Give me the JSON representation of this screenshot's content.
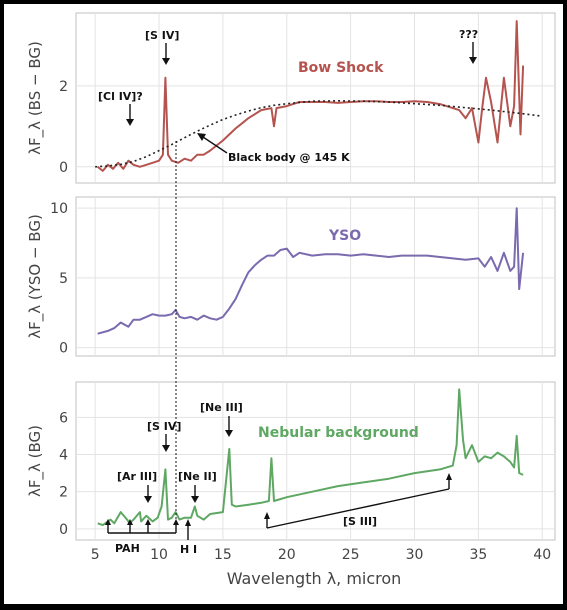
{
  "chart_data": [
    {
      "type": "line",
      "ylabel": "λF_λ (BS − BG)",
      "ylim": [
        -0.4,
        3.8
      ],
      "yticks": [
        0,
        2
      ],
      "xlim": [
        3.5,
        41
      ],
      "grid": true,
      "series": [
        {
          "name": "Bow Shock",
          "color": "#b5534f",
          "x": [
            5.2,
            5.6,
            6.0,
            6.4,
            6.8,
            7.2,
            7.6,
            8.0,
            8.5,
            9.0,
            9.5,
            10.0,
            10.3,
            10.5,
            10.7,
            11.0,
            11.5,
            12.0,
            12.5,
            13.0,
            13.5,
            14.0,
            15.0,
            16.0,
            17.0,
            18.0,
            18.8,
            19.0,
            19.2,
            20.0,
            21.0,
            22.0,
            23.0,
            24.0,
            25.0,
            26.0,
            27.0,
            28.0,
            29.0,
            30.0,
            31.0,
            32.0,
            33.0,
            33.5,
            34.0,
            34.5,
            35.0,
            35.3,
            35.6,
            36.0,
            36.5,
            37.0,
            37.5,
            37.8,
            38.0,
            38.3,
            38.5
          ],
          "values": [
            0.0,
            -0.1,
            0.05,
            -0.05,
            0.1,
            -0.05,
            0.15,
            0.05,
            0.0,
            0.05,
            0.1,
            0.15,
            0.3,
            2.2,
            0.3,
            0.15,
            0.1,
            0.2,
            0.15,
            0.3,
            0.3,
            0.4,
            0.65,
            0.95,
            1.2,
            1.4,
            1.45,
            1.0,
            1.45,
            1.5,
            1.6,
            1.6,
            1.6,
            1.58,
            1.6,
            1.62,
            1.62,
            1.6,
            1.6,
            1.62,
            1.6,
            1.55,
            1.45,
            1.4,
            1.2,
            1.45,
            0.6,
            1.45,
            2.2,
            1.6,
            0.6,
            2.2,
            1.0,
            1.5,
            3.6,
            0.8,
            2.5
          ]
        },
        {
          "name": "Black body @ 145 K",
          "color": "#222222",
          "dotted": true,
          "x": [
            5.0,
            6.0,
            7.0,
            8.0,
            9.0,
            10.0,
            11.0,
            12.0,
            13.0,
            14.0,
            15.0,
            16.0,
            17.0,
            18.0,
            19.0,
            20.0,
            22.0,
            24.0,
            26.0,
            28.0,
            30.0,
            32.0,
            34.0,
            36.0,
            38.0,
            40.0
          ],
          "values": [
            0.0,
            0.02,
            0.06,
            0.13,
            0.25,
            0.4,
            0.55,
            0.72,
            0.88,
            1.03,
            1.17,
            1.28,
            1.38,
            1.46,
            1.52,
            1.56,
            1.62,
            1.63,
            1.62,
            1.6,
            1.56,
            1.52,
            1.46,
            1.4,
            1.33,
            1.25
          ]
        }
      ],
      "annotations": [
        "[S IV]",
        "[Cl IV]?",
        "???",
        "Black body @ 145 K"
      ]
    },
    {
      "type": "line",
      "ylabel": "λF_λ (YSO − BG)",
      "ylim": [
        -0.6,
        10.8
      ],
      "yticks": [
        0,
        5,
        10
      ],
      "xlim": [
        3.5,
        41
      ],
      "grid": true,
      "series": [
        {
          "name": "YSO",
          "color": "#7a6aae",
          "x": [
            5.2,
            6.0,
            6.5,
            7.0,
            7.6,
            8.0,
            8.5,
            9.0,
            9.5,
            10.0,
            10.5,
            11.0,
            11.3,
            11.6,
            12.0,
            12.5,
            13.0,
            13.5,
            14.0,
            14.5,
            15.0,
            15.5,
            16.0,
            16.5,
            17.0,
            17.5,
            18.0,
            18.5,
            19.0,
            19.5,
            20.0,
            20.5,
            21.0,
            22.0,
            23.0,
            24.0,
            25.0,
            26.0,
            27.0,
            28.0,
            29.0,
            30.0,
            31.0,
            32.0,
            33.0,
            34.0,
            35.0,
            35.5,
            36.0,
            36.5,
            37.0,
            37.5,
            37.8,
            38.0,
            38.2,
            38.5
          ],
          "values": [
            1.0,
            1.2,
            1.4,
            1.8,
            1.5,
            2.0,
            2.0,
            2.2,
            2.4,
            2.3,
            2.3,
            2.4,
            2.7,
            2.2,
            2.1,
            2.2,
            2.0,
            2.3,
            2.1,
            2.0,
            2.2,
            2.8,
            3.5,
            4.5,
            5.4,
            5.9,
            6.3,
            6.6,
            6.6,
            7.0,
            7.1,
            6.5,
            6.8,
            6.6,
            6.7,
            6.7,
            6.6,
            6.7,
            6.6,
            6.5,
            6.6,
            6.6,
            6.6,
            6.5,
            6.4,
            6.3,
            6.4,
            5.8,
            6.5,
            5.5,
            6.8,
            5.5,
            5.8,
            10.0,
            4.2,
            6.8
          ]
        }
      ]
    },
    {
      "type": "line",
      "ylabel": "λF_λ (BG)",
      "xlabel": "Wavelength λ, micron",
      "ylim": [
        -0.6,
        7.9
      ],
      "yticks": [
        0,
        2,
        4,
        6
      ],
      "xlim": [
        3.5,
        41
      ],
      "xticks": [
        5,
        10,
        15,
        20,
        25,
        30,
        35,
        40
      ],
      "grid": true,
      "series": [
        {
          "name": "Nebular background",
          "color": "#5ea863",
          "x": [
            5.2,
            5.6,
            6.0,
            6.2,
            6.5,
            7.0,
            7.5,
            7.7,
            8.0,
            8.5,
            8.6,
            9.0,
            9.5,
            9.9,
            10.2,
            10.5,
            10.7,
            11.0,
            11.3,
            11.6,
            12.0,
            12.5,
            12.8,
            13.0,
            13.5,
            14.0,
            15.0,
            15.5,
            15.7,
            16.0,
            17.0,
            18.0,
            18.6,
            18.8,
            19.0,
            20.0,
            22.0,
            24.0,
            26.0,
            28.0,
            30.0,
            32.0,
            33.0,
            33.3,
            33.5,
            33.8,
            34.0,
            34.5,
            35.0,
            35.5,
            36.0,
            36.5,
            37.0,
            37.5,
            37.8,
            38.0,
            38.2,
            38.5
          ],
          "values": [
            0.3,
            0.2,
            0.4,
            0.5,
            0.3,
            0.9,
            0.5,
            0.3,
            0.5,
            0.9,
            0.4,
            0.7,
            0.4,
            0.6,
            1.2,
            3.2,
            0.5,
            0.6,
            0.9,
            0.5,
            0.6,
            0.6,
            1.2,
            0.7,
            0.5,
            0.8,
            0.9,
            4.3,
            1.3,
            1.2,
            1.3,
            1.4,
            1.5,
            3.8,
            1.5,
            1.7,
            2.0,
            2.3,
            2.5,
            2.7,
            3.0,
            3.2,
            3.4,
            4.5,
            7.5,
            4.8,
            3.8,
            4.5,
            3.6,
            3.9,
            3.8,
            4.1,
            3.9,
            3.6,
            3.3,
            5.0,
            3.0,
            2.9
          ]
        }
      ],
      "annotations": [
        "[S IV]",
        "[Ne III]",
        "[Ar III]",
        "[Ne II]",
        "PAH",
        "H I",
        "[S III]"
      ]
    }
  ],
  "labels": {
    "bow_shock": "Bow Shock",
    "yso": "YSO",
    "nebular": "Nebular background",
    "p1_s4": "[S IV]",
    "p1_cl4": "[Cl IV]?",
    "p1_qqq": "???",
    "blackbody": "Black body @ 145 K",
    "p3_s4": "[S IV]",
    "p3_ne3": "[Ne III]",
    "p3_ar3": "[Ar III]",
    "p3_ne2": "[Ne II]",
    "p3_pah": "PAH",
    "p3_hi": "H I",
    "p3_s3": "[S III]"
  }
}
